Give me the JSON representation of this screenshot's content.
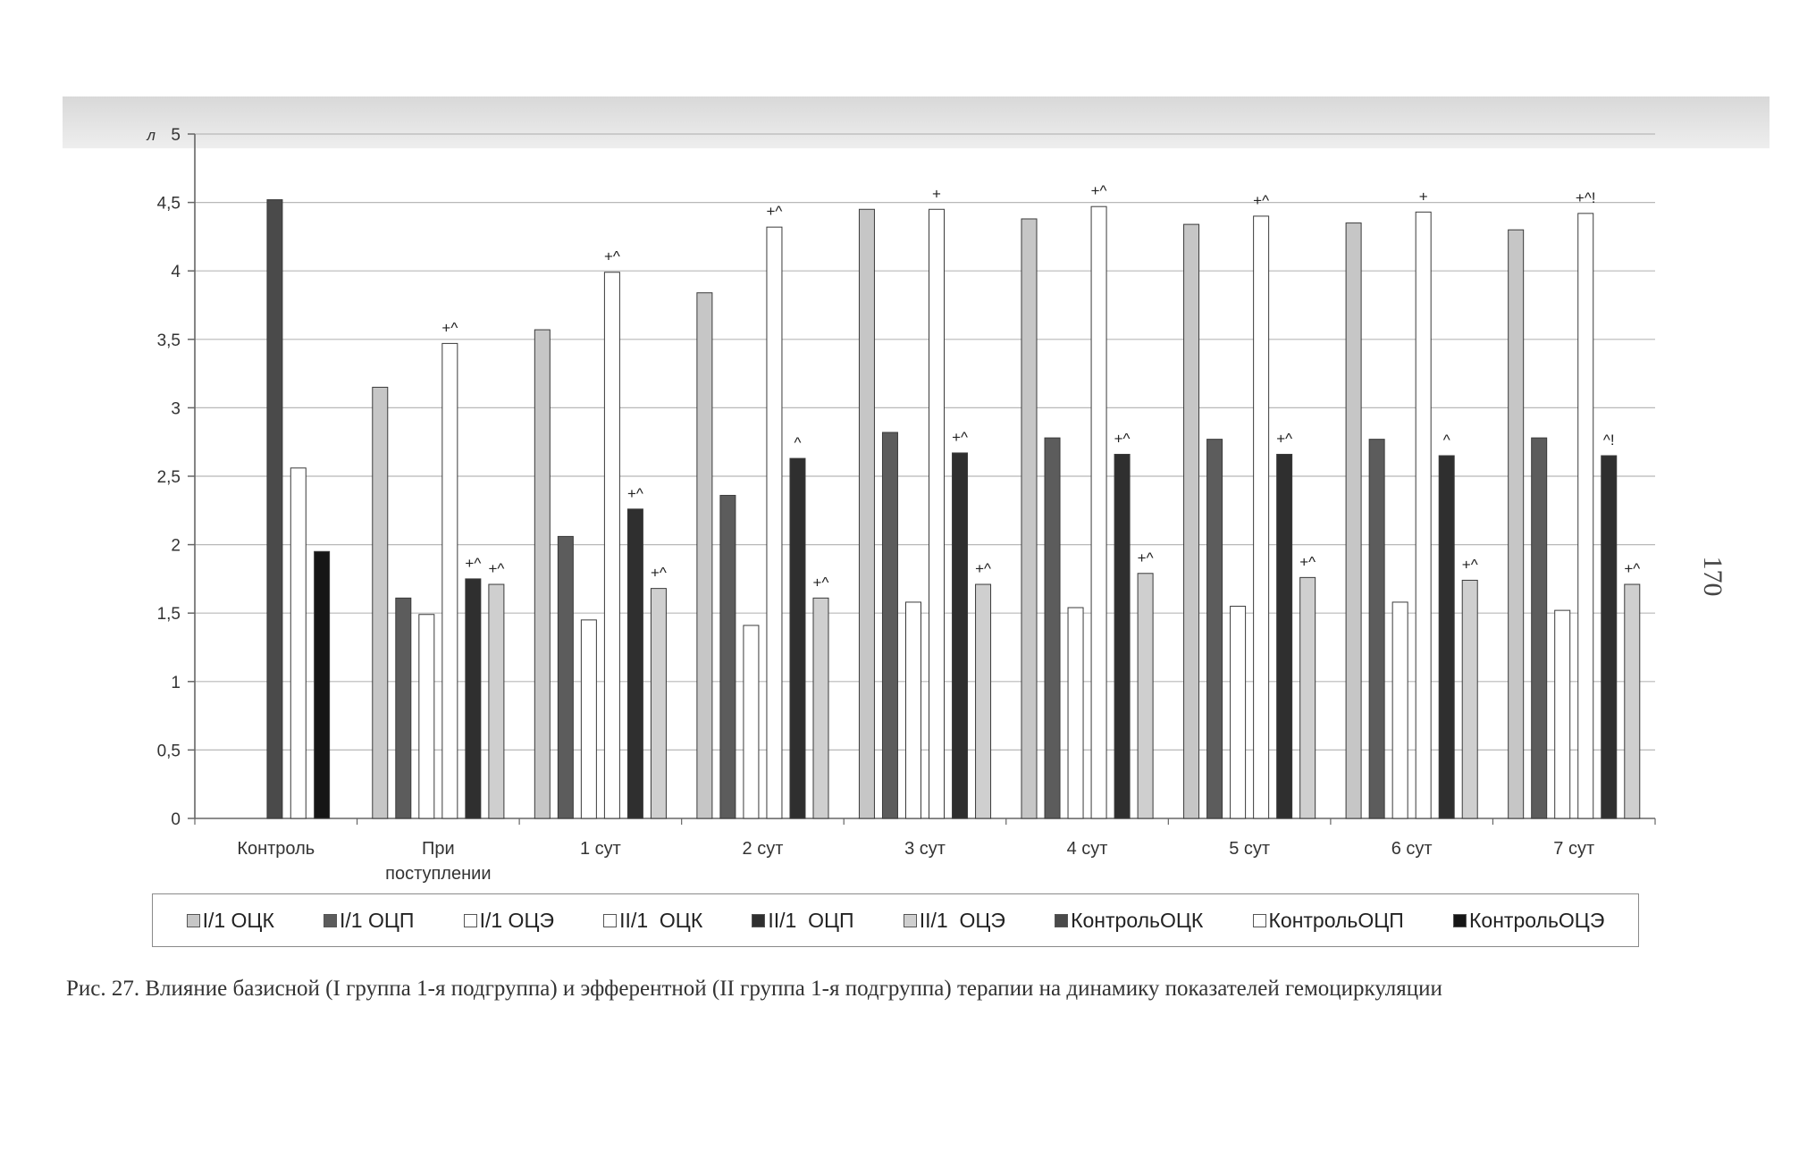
{
  "page_number": "170",
  "caption": {
    "text": "Рис. 27. Влияние базисной (I группа 1-я подгруппа) и эфферентной (II группа 1-я подгруппа) терапии на динамику показателей гемоциркуляции"
  },
  "colors": {
    "series": [
      "#c6c6c6",
      "#5c5c5c",
      "#ffffff",
      "#ffffff",
      "#2f2f2f",
      "#cfcfcf",
      "#4a4a4a",
      "#ffffff",
      "#161616"
    ],
    "grid": "#b8b8b8",
    "axis": "#666666"
  },
  "chart_data": {
    "type": "bar",
    "ylabel": "л",
    "ylim": [
      0,
      5
    ],
    "yticks": [
      {
        "value": 0,
        "label": "0"
      },
      {
        "value": 0.5,
        "label": "0,5"
      },
      {
        "value": 1,
        "label": "1"
      },
      {
        "value": 1.5,
        "label": "1,5"
      },
      {
        "value": 2,
        "label": "2"
      },
      {
        "value": 2.5,
        "label": "2,5"
      },
      {
        "value": 3,
        "label": "3"
      },
      {
        "value": 3.5,
        "label": "3,5"
      },
      {
        "value": 4,
        "label": "4"
      },
      {
        "value": 4.5,
        "label": "4,5"
      },
      {
        "value": 5,
        "label": "5"
      }
    ],
    "grid": true,
    "legend_position": "bottom",
    "categories": [
      [
        "Контроль"
      ],
      [
        "При",
        "поступлении"
      ],
      [
        "1 сут"
      ],
      [
        "2 сут"
      ],
      [
        "3 сут"
      ],
      [
        "4 сут"
      ],
      [
        "5 сут"
      ],
      [
        "6 сут"
      ],
      [
        "7 сут"
      ]
    ],
    "series": [
      {
        "name": "I/1 ОЦК",
        "values": [
          null,
          3.15,
          3.57,
          3.84,
          4.45,
          4.38,
          4.34,
          4.35,
          4.3
        ]
      },
      {
        "name": "I/1 ОЦП",
        "values": [
          null,
          1.61,
          2.06,
          2.36,
          2.82,
          2.78,
          2.77,
          2.77,
          2.78
        ]
      },
      {
        "name": "I/1 ОЦЭ",
        "values": [
          null,
          1.49,
          1.45,
          1.41,
          1.58,
          1.54,
          1.55,
          1.58,
          1.52
        ]
      },
      {
        "name": "II/1  ОЦК",
        "values": [
          null,
          3.47,
          3.99,
          4.32,
          4.45,
          4.47,
          4.4,
          4.43,
          4.42
        ]
      },
      {
        "name": "II/1  ОЦП",
        "values": [
          null,
          1.75,
          2.26,
          2.63,
          2.67,
          2.66,
          2.66,
          2.65,
          2.65
        ]
      },
      {
        "name": "II/1  ОЦЭ",
        "values": [
          null,
          1.71,
          1.68,
          1.61,
          1.71,
          1.79,
          1.76,
          1.74,
          1.71
        ]
      },
      {
        "name": "КонтрольОЦК",
        "values": [
          4.52,
          null,
          null,
          null,
          null,
          null,
          null,
          null,
          null
        ]
      },
      {
        "name": "КонтрольОЦП",
        "values": [
          2.56,
          null,
          null,
          null,
          null,
          null,
          null,
          null,
          null
        ]
      },
      {
        "name": "КонтрольОЦЭ",
        "values": [
          1.95,
          null,
          null,
          null,
          null,
          null,
          null,
          null,
          null
        ]
      }
    ],
    "annotations": [
      {
        "category": 1,
        "series": 3,
        "text": "+^"
      },
      {
        "category": 1,
        "series": 4,
        "text": "+^"
      },
      {
        "category": 1,
        "series": 5,
        "text": "+^"
      },
      {
        "category": 2,
        "series": 3,
        "text": "+^"
      },
      {
        "category": 2,
        "series": 4,
        "text": "+^"
      },
      {
        "category": 2,
        "series": 5,
        "text": "+^"
      },
      {
        "category": 3,
        "series": 3,
        "text": "+^"
      },
      {
        "category": 3,
        "series": 4,
        "text": "^"
      },
      {
        "category": 3,
        "series": 5,
        "text": "+^"
      },
      {
        "category": 4,
        "series": 3,
        "text": "+"
      },
      {
        "category": 4,
        "series": 4,
        "text": "+^"
      },
      {
        "category": 4,
        "series": 5,
        "text": "+^"
      },
      {
        "category": 5,
        "series": 3,
        "text": "+^"
      },
      {
        "category": 5,
        "series": 4,
        "text": "+^"
      },
      {
        "category": 5,
        "series": 5,
        "text": "+^"
      },
      {
        "category": 6,
        "series": 3,
        "text": "+^"
      },
      {
        "category": 6,
        "series": 4,
        "text": "+^"
      },
      {
        "category": 6,
        "series": 5,
        "text": "+^"
      },
      {
        "category": 7,
        "series": 3,
        "text": "+"
      },
      {
        "category": 7,
        "series": 4,
        "text": "^"
      },
      {
        "category": 7,
        "series": 5,
        "text": "+^"
      },
      {
        "category": 8,
        "series": 3,
        "text": "+^!"
      },
      {
        "category": 8,
        "series": 4,
        "text": "^!"
      },
      {
        "category": 8,
        "series": 5,
        "text": "+^"
      }
    ]
  }
}
